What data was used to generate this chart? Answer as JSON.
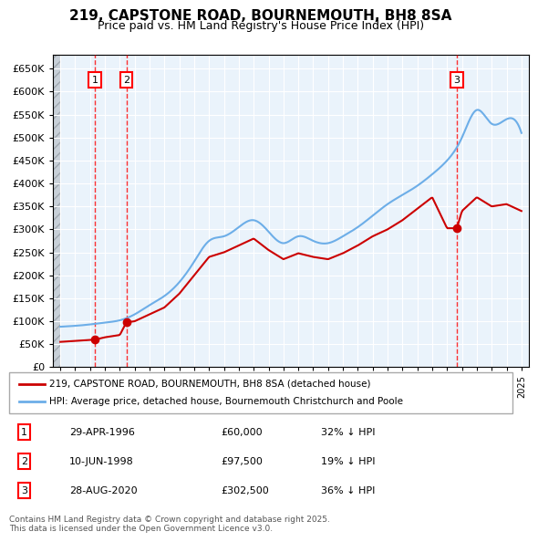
{
  "title": "219, CAPSTONE ROAD, BOURNEMOUTH, BH8 8SA",
  "subtitle": "Price paid vs. HM Land Registry's House Price Index (HPI)",
  "hpi_color": "#6daee8",
  "price_color": "#cc0000",
  "background_plot": "#eaf3fb",
  "background_hatch": "#d0d8e0",
  "ylim": [
    0,
    680000
  ],
  "yticks": [
    0,
    50000,
    100000,
    150000,
    200000,
    250000,
    300000,
    350000,
    400000,
    450000,
    500000,
    550000,
    600000,
    650000
  ],
  "xlim_start": 1993.5,
  "xlim_end": 2025.5,
  "sale_dates": [
    1996.33,
    1998.44,
    2020.66
  ],
  "sale_prices": [
    60000,
    97500,
    302500
  ],
  "sale_labels": [
    "1",
    "2",
    "3"
  ],
  "sale_date_strings": [
    "29-APR-1996",
    "10-JUN-1998",
    "28-AUG-2020"
  ],
  "sale_price_strings": [
    "£60,000",
    "£97,500",
    "£302,500"
  ],
  "sale_hpi_strings": [
    "32% ↓ HPI",
    "19% ↓ HPI",
    "36% ↓ HPI"
  ],
  "legend_line1": "219, CAPSTONE ROAD, BOURNEMOUTH, BH8 8SA (detached house)",
  "legend_line2": "HPI: Average price, detached house, Bournemouth Christchurch and Poole",
  "footer": "Contains HM Land Registry data © Crown copyright and database right 2025.\nThis data is licensed under the Open Government Licence v3.0."
}
